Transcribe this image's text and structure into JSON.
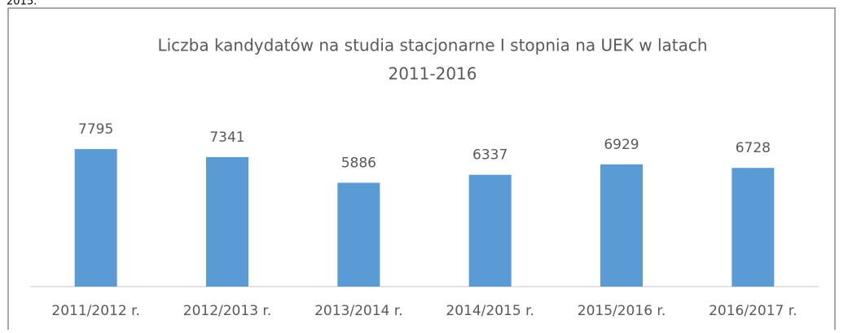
{
  "page_text": "2015.",
  "chart_data": {
    "type": "bar",
    "title": [
      "Liczba kandydatów na studia stacjonarne I stopnia na UEK w latach",
      "2011-2016"
    ],
    "categories": [
      "2011/2012 r.",
      "2012/2013 r.",
      "2013/2014 r.",
      "2014/2015 r.",
      "2015/2016 r.",
      "2016/2017 r."
    ],
    "values": [
      7795,
      7341,
      5886,
      6337,
      6929,
      6728
    ],
    "color": "#5b9bd5",
    "ylim": [
      0,
      9000
    ]
  }
}
